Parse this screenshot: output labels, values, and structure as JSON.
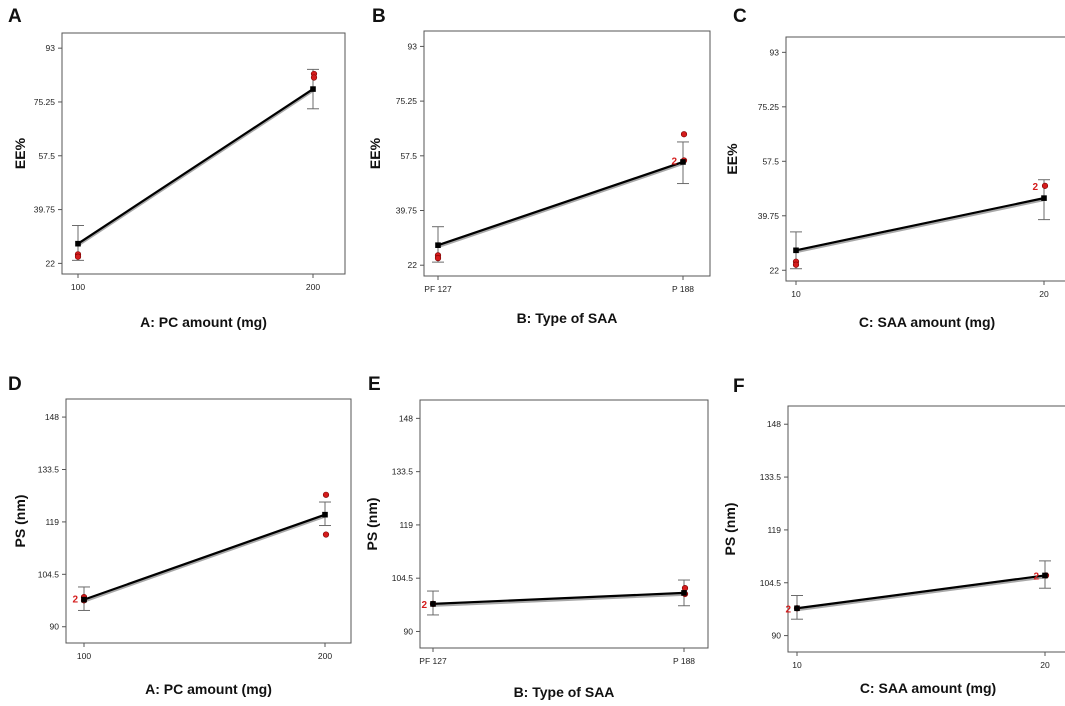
{
  "chart_data": [
    {
      "id": "A",
      "type": "line",
      "letter": "A",
      "xlabel": "A: PC amount (mg)",
      "ylabel": "EE%",
      "x_categories": [
        "100",
        "200"
      ],
      "y_ticks": [
        "93",
        "75.25",
        "57.5",
        "39.75",
        "22"
      ],
      "ylim": [
        18.5,
        98
      ],
      "series": [
        {
          "name": "predicted",
          "values": [
            28.5,
            79.5
          ]
        }
      ],
      "ci_low": [
        23,
        73
      ],
      "ci_high": [
        34.5,
        86
      ],
      "observed": [
        [
          0,
          25
        ],
        [
          0,
          24.2
        ],
        [
          1,
          84.5
        ],
        [
          1,
          83.3
        ]
      ],
      "replicate_labels": []
    },
    {
      "id": "B",
      "type": "line",
      "letter": "B",
      "xlabel": "B: Type of SAA",
      "ylabel": "EE%",
      "x_categories": [
        "PF 127",
        "P 188"
      ],
      "y_ticks": [
        "93",
        "75.25",
        "57.5",
        "39.75",
        "22"
      ],
      "ylim": [
        18.5,
        98
      ],
      "series": [
        {
          "name": "predicted",
          "values": [
            28.5,
            55.5
          ]
        }
      ],
      "ci_low": [
        23,
        48.5
      ],
      "ci_high": [
        34.5,
        62
      ],
      "observed": [
        [
          0,
          25.2
        ],
        [
          0,
          24.3
        ],
        [
          1,
          56
        ],
        [
          1,
          64.5
        ]
      ],
      "replicate_labels": [
        {
          "label": "2",
          "x_index": 1,
          "y": 56
        }
      ]
    },
    {
      "id": "C",
      "type": "line",
      "letter": "C",
      "xlabel": "C: SAA amount (mg)",
      "ylabel": "EE%",
      "x_categories": [
        "10",
        "20"
      ],
      "y_ticks": [
        "93",
        "75.25",
        "57.5",
        "39.75",
        "22"
      ],
      "ylim": [
        18.5,
        98
      ],
      "series": [
        {
          "name": "predicted",
          "values": [
            28.5,
            45.5
          ]
        }
      ],
      "ci_low": [
        22.5,
        38.5
      ],
      "ci_high": [
        34.5,
        51.5
      ],
      "observed": [
        [
          0,
          24.8
        ],
        [
          0,
          23.8
        ],
        [
          1,
          49.5
        ]
      ],
      "replicate_labels": [
        {
          "label": "2",
          "x_index": 1,
          "y": 49.5
        }
      ]
    },
    {
      "id": "D",
      "type": "line",
      "letter": "D",
      "xlabel": "A: PC amount (mg)",
      "ylabel": "PS (nm)",
      "x_categories": [
        "100",
        "200"
      ],
      "y_ticks": [
        "148",
        "133.5",
        "119",
        "104.5",
        "90"
      ],
      "ylim": [
        85.5,
        153
      ],
      "series": [
        {
          "name": "predicted",
          "values": [
            97.5,
            121
          ]
        }
      ],
      "ci_low": [
        94.5,
        118
      ],
      "ci_high": [
        101,
        124.5
      ],
      "observed": [
        [
          0,
          97.3
        ],
        [
          0,
          98.2
        ],
        [
          1,
          126.5
        ],
        [
          1,
          115.5
        ]
      ],
      "replicate_labels": [
        {
          "label": "2",
          "x_index": 0,
          "y": 97.8
        }
      ]
    },
    {
      "id": "E",
      "type": "line",
      "letter": "E",
      "xlabel": "B: Type of SAA",
      "ylabel": "PS (nm)",
      "x_categories": [
        "PF 127",
        "P 188"
      ],
      "y_ticks": [
        "148",
        "133.5",
        "119",
        "104.5",
        "90"
      ],
      "ylim": [
        85.5,
        153
      ],
      "series": [
        {
          "name": "predicted",
          "values": [
            97.5,
            100.5
          ]
        }
      ],
      "ci_low": [
        94.5,
        97
      ],
      "ci_high": [
        101,
        104
      ],
      "observed": [
        [
          0,
          97.5
        ],
        [
          1,
          100.2
        ],
        [
          1,
          101.8
        ]
      ],
      "replicate_labels": [
        {
          "label": "2",
          "x_index": 0,
          "y": 97.5
        }
      ]
    },
    {
      "id": "F",
      "type": "line",
      "letter": "F",
      "xlabel": "C: SAA amount (mg)",
      "ylabel": "PS (nm)",
      "x_categories": [
        "10",
        "20"
      ],
      "y_ticks": [
        "148",
        "133.5",
        "119",
        "104.5",
        "90"
      ],
      "ylim": [
        85.5,
        153
      ],
      "series": [
        {
          "name": "predicted",
          "values": [
            97.5,
            106.5
          ]
        }
      ],
      "ci_low": [
        94.5,
        103
      ],
      "ci_high": [
        101,
        110.5
      ],
      "observed": [
        [
          0,
          97.5
        ],
        [
          1,
          106.5
        ]
      ],
      "replicate_labels": [
        {
          "label": "2",
          "x_index": 0,
          "y": 97.5
        },
        {
          "label": "2",
          "x_index": 1,
          "y": 106.5
        }
      ]
    }
  ]
}
